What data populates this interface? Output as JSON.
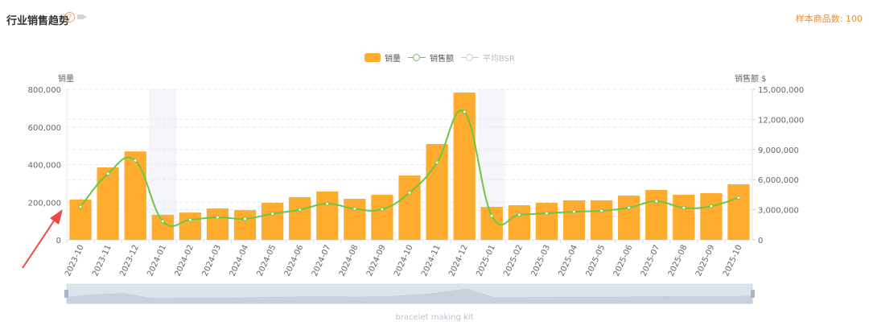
{
  "header": {
    "title": "行业销售趋势",
    "help_icon": "question-circle-icon",
    "video_icon": "video-camera-icon",
    "sample_count": "样本商品数: 100"
  },
  "legend": [
    {
      "label": "销量",
      "type": "bar",
      "color": "#ffab2e",
      "active": true
    },
    {
      "label": "销售额",
      "type": "line",
      "color": "#6cc644",
      "active": true
    },
    {
      "label": "平均BSR",
      "type": "line",
      "color": "#cccccc",
      "active": false
    }
  ],
  "axes": {
    "left_title": "销量",
    "right_title": "销售额 $",
    "left_ticks": [
      "0",
      "200,000",
      "400,000",
      "600,000",
      "800,000"
    ],
    "right_ticks": [
      "0",
      "3,000,000",
      "6,000,000",
      "9,000,000",
      "12,000,000",
      "15,000,000"
    ]
  },
  "subtitle": "bracelet making kit",
  "colors": {
    "bar": "#ffab2e",
    "line": "#6cc644",
    "highlight_band": "#f4f6fa",
    "annotation_arrow": "#f04848",
    "datazoom_fill": "#dde3ec"
  },
  "chart_data": {
    "type": "bar",
    "title": "行业销售趋势",
    "categories": [
      "2023-10",
      "2023-11",
      "2023-12",
      "2024-01",
      "2024-02",
      "2024-03",
      "2024-04",
      "2024-05",
      "2024-06",
      "2024-07",
      "2024-08",
      "2024-09",
      "2024-10",
      "2024-11",
      "2024-12",
      "2025-01",
      "2025-02",
      "2025-03",
      "2025-04",
      "2025-05",
      "2025-06",
      "2025-07",
      "2025-08",
      "2025-09",
      "2025-10"
    ],
    "series": [
      {
        "name": "销量",
        "type": "bar",
        "axis": "left",
        "values": [
          214000,
          385000,
          470000,
          133000,
          145000,
          167000,
          158000,
          197000,
          227000,
          257000,
          218000,
          240000,
          342000,
          509000,
          783000,
          175000,
          184000,
          197000,
          210000,
          210000,
          235000,
          265000,
          240000,
          248000,
          295000
        ]
      },
      {
        "name": "销售额",
        "type": "line",
        "axis": "right",
        "values": [
          3300000,
          6600000,
          7900000,
          1850000,
          2000000,
          2250000,
          2100000,
          2600000,
          3000000,
          3600000,
          3100000,
          3050000,
          4700000,
          7700000,
          12750000,
          2400000,
          2500000,
          2650000,
          2800000,
          2900000,
          3200000,
          3850000,
          3200000,
          3350000,
          4200000
        ]
      },
      {
        "name": "平均BSR",
        "type": "line",
        "axis": "hidden",
        "values": []
      }
    ],
    "xlabel": "",
    "ylabel": "销量",
    "y2label": "销售额 $",
    "ylim": [
      0,
      800000
    ],
    "y2lim": [
      0,
      15000000
    ],
    "grid": true,
    "legend_position": "top-center",
    "highlighted_categories": [
      "2024-01",
      "2025-01"
    ],
    "subtitle": "bracelet making kit"
  }
}
